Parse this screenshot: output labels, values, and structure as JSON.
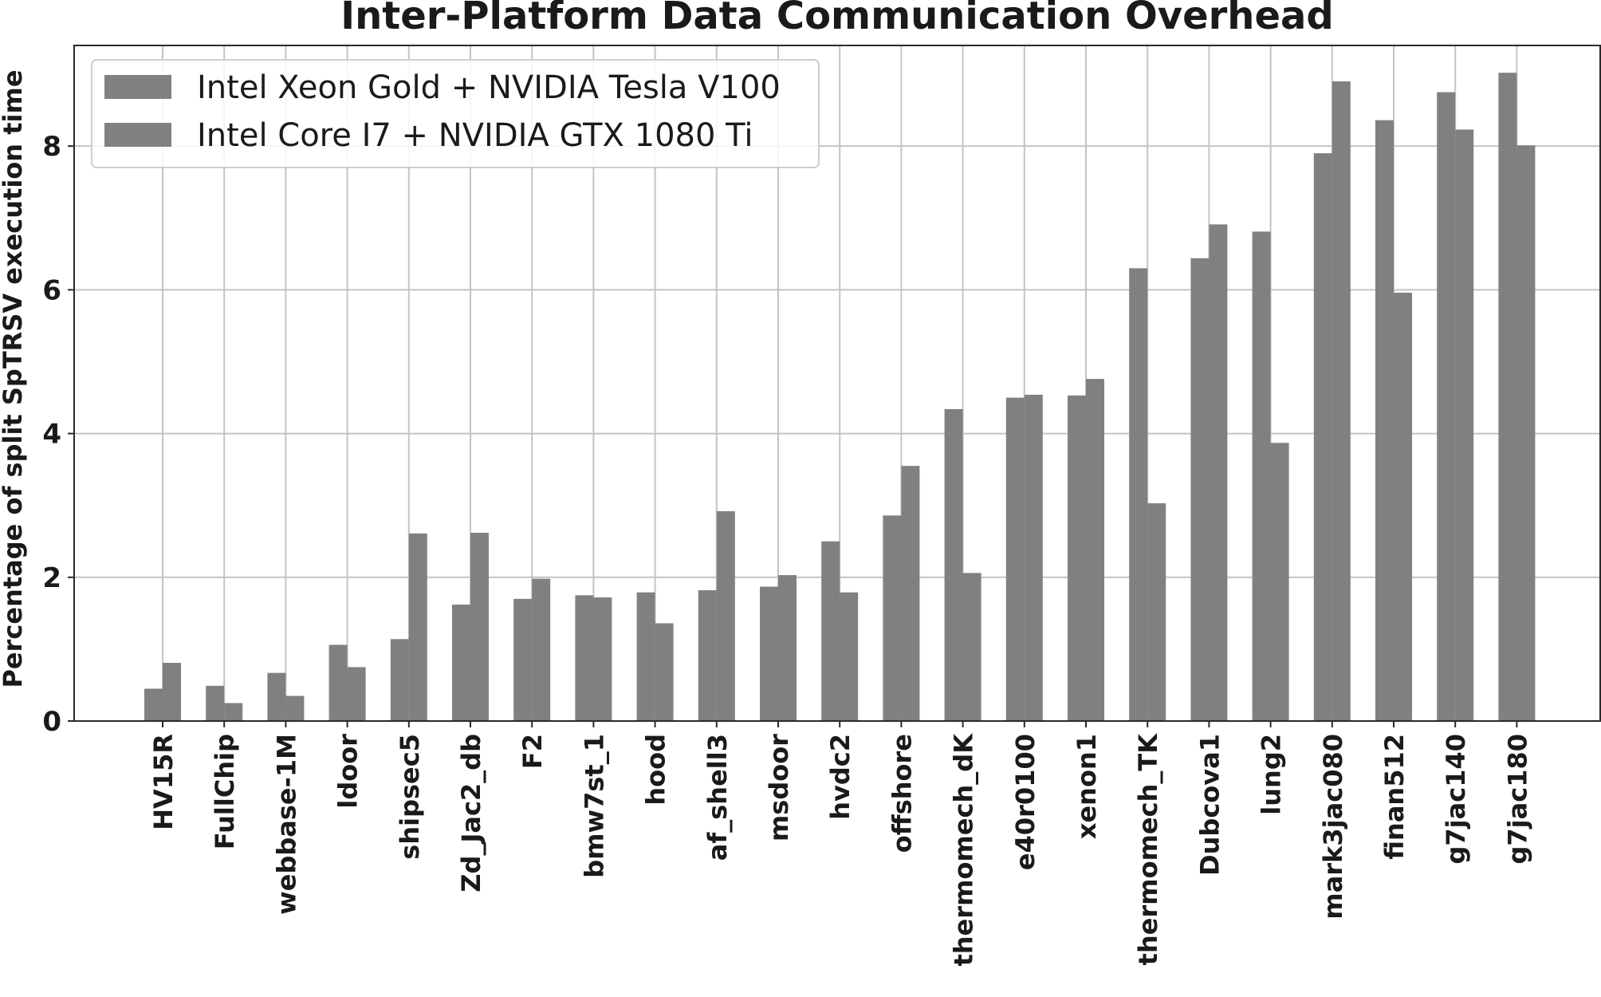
{
  "chart_data": {
    "type": "bar",
    "title": "Inter-Platform Data Communication Overhead",
    "xlabel": "",
    "ylabel": "Percentage of split SpTRSV execution time",
    "ylim": [
      0,
      9.4
    ],
    "yticks": [
      0,
      2,
      4,
      6,
      8
    ],
    "grid": true,
    "legend_position": "top-left",
    "categories": [
      "HV15R",
      "FullChip",
      "webbase-1M",
      "ldoor",
      "shipsec5",
      "Zd_Jac2_db",
      "F2",
      "bmw7st_1",
      "hood",
      "af_shell3",
      "msdoor",
      "hvdc2",
      "offshore",
      "thermomech_dK",
      "e40r0100",
      "xenon1",
      "thermomech_TK",
      "Dubcova1",
      "lung2",
      "mark3jac080",
      "finan512",
      "g7jac140",
      "g7jac180"
    ],
    "series": [
      {
        "name": "Intel Xeon Gold + NVIDIA Tesla V100",
        "color": "#808080",
        "values": [
          0.45,
          0.49,
          0.67,
          1.06,
          1.14,
          1.62,
          1.7,
          1.75,
          1.79,
          1.82,
          1.87,
          2.5,
          2.86,
          4.34,
          4.5,
          4.53,
          6.3,
          6.44,
          6.81,
          7.9,
          8.36,
          8.75,
          9.02
        ]
      },
      {
        "name": "Intel Core I7 + NVIDIA GTX 1080 Ti",
        "color": "#808080",
        "values": [
          0.81,
          0.25,
          0.35,
          0.75,
          2.61,
          2.62,
          1.98,
          1.72,
          1.36,
          2.92,
          2.03,
          1.79,
          3.55,
          2.06,
          4.54,
          4.76,
          3.03,
          6.91,
          3.87,
          8.9,
          5.96,
          8.23,
          8.01
        ]
      }
    ]
  }
}
